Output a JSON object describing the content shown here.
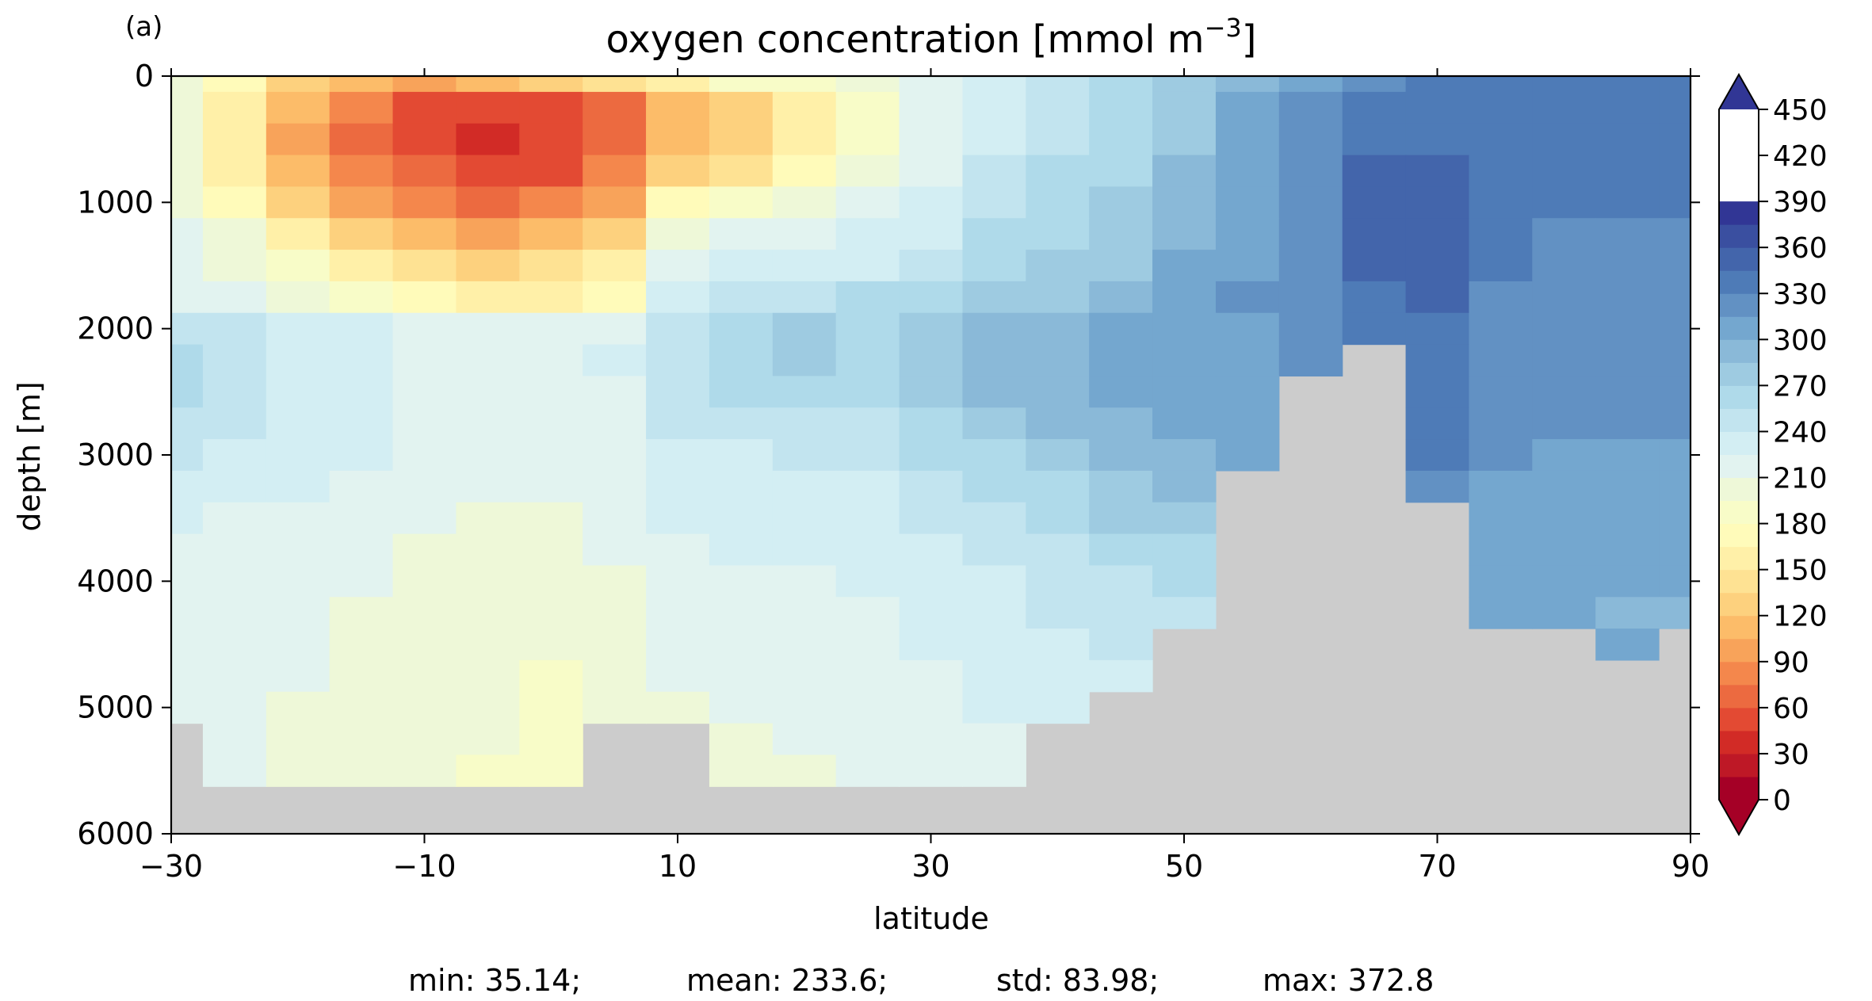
{
  "chart_data": {
    "type": "heatmap",
    "panel_label": "(a)",
    "title_main": "oxygen concentration [mmol m",
    "title_exp": "−3",
    "title_end": "]",
    "xlabel": "latitude",
    "ylabel": "depth [m]",
    "xlim": [
      -30,
      90
    ],
    "ylim": [
      6000,
      0
    ],
    "xticks": [
      -30,
      -10,
      10,
      30,
      50,
      70,
      90
    ],
    "xtick_labels": [
      "−30",
      "−10",
      "10",
      "30",
      "50",
      "70",
      "90"
    ],
    "yticks": [
      0,
      1000,
      2000,
      3000,
      4000,
      5000,
      6000
    ],
    "ytick_labels": [
      "0",
      "1000",
      "2000",
      "3000",
      "4000",
      "5000",
      "6000"
    ],
    "colorbar": {
      "levels": [
        0,
        15,
        30,
        45,
        60,
        75,
        90,
        105,
        120,
        135,
        150,
        165,
        180,
        195,
        210,
        225,
        240,
        255,
        270,
        285,
        300,
        315,
        330,
        345,
        360,
        375,
        390,
        405,
        420,
        435,
        450
      ],
      "tick_values": [
        0,
        30,
        60,
        90,
        120,
        150,
        180,
        210,
        240,
        270,
        300,
        330,
        360,
        390,
        420,
        450
      ],
      "tick_labels": [
        "0",
        "30",
        "60",
        "90",
        "120",
        "150",
        "180",
        "210",
        "240",
        "270",
        "300",
        "330",
        "360",
        "390",
        "420",
        "450"
      ],
      "colors": [
        "#a50026",
        "#be1826",
        "#d22b26",
        "#e34a33",
        "#ec6a40",
        "#f4874c",
        "#f8a35a",
        "#fcbc69",
        "#fdd17e",
        "#fee293",
        "#fff0a8",
        "#fffbba",
        "#f8fcc8",
        "#eef8d8",
        "#e2f3f0",
        "#d3eef3",
        "#c2e4ef",
        "#afdaea",
        "#9ecbe1",
        "#8ab9d8",
        "#74a7cf",
        "#6291c3",
        "#4e7bb7",
        "#4365ab",
        "#3a4fa0",
        "#313695"
      ],
      "extend": "both"
    },
    "land_color": "#cccccc",
    "stats": {
      "min": "min: 35.14;",
      "mean": "mean: 233.6;",
      "std": "std: 83.98;",
      "max": "max: 372.8"
    },
    "field": {
      "lat_centers": [
        -30,
        -25,
        -20,
        -15,
        -10,
        -5,
        0,
        5,
        10,
        15,
        20,
        25,
        30,
        35,
        40,
        45,
        50,
        55,
        60,
        65,
        70,
        75,
        80,
        85,
        90
      ],
      "depth_centers": [
        0,
        250,
        500,
        750,
        1000,
        1250,
        1500,
        1750,
        2000,
        2250,
        2500,
        2750,
        3000,
        3250,
        3500,
        3750,
        4000,
        4250,
        4500,
        4750,
        5000,
        5250,
        5500
      ],
      "values_by_depth": [
        [
          200,
          170,
          130,
          110,
          100,
          110,
          120,
          140,
          160,
          180,
          190,
          200,
          215,
          230,
          245,
          262,
          275,
          290,
          305,
          320,
          330,
          340,
          340,
          340,
          340
        ],
        [
          200,
          155,
          110,
          80,
          55,
          45,
          50,
          70,
          110,
          130,
          160,
          190,
          215,
          230,
          245,
          262,
          280,
          300,
          315,
          330,
          335,
          340,
          340,
          340,
          340
        ],
        [
          200,
          150,
          100,
          70,
          50,
          40,
          45,
          65,
          105,
          125,
          150,
          185,
          210,
          230,
          248,
          265,
          280,
          300,
          320,
          335,
          340,
          340,
          340,
          340,
          340
        ],
        [
          200,
          155,
          110,
          80,
          60,
          50,
          55,
          75,
          120,
          140,
          170,
          200,
          220,
          240,
          255,
          268,
          285,
          300,
          320,
          345,
          345,
          340,
          335,
          335,
          335
        ],
        [
          205,
          175,
          130,
          100,
          80,
          70,
          75,
          100,
          165,
          190,
          205,
          215,
          228,
          245,
          258,
          270,
          290,
          305,
          320,
          350,
          350,
          335,
          330,
          330,
          330
        ],
        [
          210,
          195,
          160,
          130,
          110,
          100,
          105,
          125,
          195,
          215,
          222,
          228,
          235,
          255,
          265,
          275,
          295,
          310,
          320,
          355,
          355,
          335,
          325,
          325,
          325
        ],
        [
          215,
          205,
          185,
          160,
          140,
          130,
          135,
          150,
          210,
          225,
          232,
          238,
          245,
          262,
          272,
          283,
          300,
          312,
          320,
          355,
          355,
          330,
          322,
          322,
          322
        ],
        [
          220,
          212,
          200,
          180,
          165,
          160,
          160,
          175,
          230,
          245,
          250,
          255,
          262,
          272,
          280,
          290,
          305,
          315,
          320,
          340,
          345,
          325,
          322,
          322,
          322
        ],
        [
          248,
          240,
          232,
          225,
          220,
          215,
          215,
          222,
          245,
          265,
          270,
          268,
          272,
          285,
          295,
          300,
          310,
          312,
          315,
          335,
          340,
          320,
          320,
          320,
          320
        ],
        [
          255,
          248,
          235,
          228,
          222,
          218,
          215,
          225,
          250,
          268,
          270,
          265,
          272,
          288,
          298,
          302,
          310,
          312,
          315,
          null,
          340,
          320,
          320,
          320,
          320
        ],
        [
          255,
          245,
          235,
          225,
          222,
          218,
          215,
          222,
          248,
          262,
          262,
          260,
          270,
          285,
          298,
          302,
          310,
          310,
          null,
          null,
          340,
          318,
          318,
          318,
          318
        ],
        [
          245,
          240,
          232,
          225,
          220,
          218,
          215,
          220,
          240,
          248,
          250,
          250,
          262,
          275,
          290,
          298,
          305,
          305,
          null,
          null,
          340,
          318,
          318,
          318,
          318
        ],
        [
          240,
          235,
          230,
          225,
          218,
          215,
          215,
          220,
          232,
          238,
          240,
          242,
          255,
          268,
          282,
          290,
          298,
          300,
          null,
          null,
          340,
          318,
          310,
          310,
          310
        ],
        [
          230,
          228,
          225,
          222,
          215,
          212,
          212,
          215,
          228,
          230,
          232,
          235,
          245,
          255,
          268,
          280,
          288,
          null,
          null,
          null,
          315,
          312,
          310,
          308,
          308
        ],
        [
          225,
          222,
          220,
          215,
          210,
          208,
          208,
          212,
          225,
          228,
          230,
          232,
          240,
          248,
          258,
          270,
          282,
          null,
          null,
          null,
          null,
          310,
          308,
          305,
          305
        ],
        [
          220,
          218,
          215,
          210,
          205,
          205,
          205,
          210,
          222,
          225,
          225,
          228,
          235,
          240,
          248,
          255,
          265,
          null,
          null,
          null,
          null,
          305,
          305,
          300,
          300
        ],
        [
          220,
          218,
          215,
          210,
          205,
          205,
          205,
          208,
          218,
          220,
          222,
          225,
          232,
          238,
          242,
          248,
          258,
          null,
          null,
          null,
          null,
          300,
          300,
          300,
          300
        ],
        [
          218,
          215,
          212,
          208,
          205,
          202,
          200,
          205,
          215,
          218,
          220,
          222,
          228,
          235,
          240,
          245,
          252,
          null,
          null,
          null,
          null,
          300,
          300,
          298,
          298
        ],
        [
          215,
          212,
          210,
          205,
          202,
          198,
          195,
          200,
          212,
          215,
          218,
          220,
          225,
          230,
          235,
          240,
          null,
          null,
          null,
          null,
          null,
          null,
          null,
          300,
          null
        ],
        [
          215,
          212,
          210,
          205,
          200,
          198,
          192,
          200,
          210,
          212,
          215,
          218,
          222,
          228,
          232,
          235,
          null,
          null,
          null,
          null,
          null,
          null,
          null,
          null,
          null
        ],
        [
          215,
          212,
          208,
          205,
          200,
          195,
          190,
          198,
          208,
          210,
          212,
          215,
          220,
          225,
          230,
          null,
          null,
          null,
          null,
          null,
          null,
          null,
          null,
          null,
          null
        ],
        [
          null,
          210,
          208,
          205,
          200,
          195,
          190,
          null,
          null,
          205,
          210,
          212,
          218,
          222,
          null,
          null,
          null,
          null,
          null,
          null,
          null,
          null,
          null,
          null,
          null
        ],
        [
          null,
          210,
          205,
          200,
          198,
          192,
          188,
          null,
          null,
          202,
          208,
          210,
          215,
          220,
          null,
          null,
          null,
          null,
          null,
          null,
          null,
          null,
          null,
          null,
          null
        ]
      ]
    }
  }
}
